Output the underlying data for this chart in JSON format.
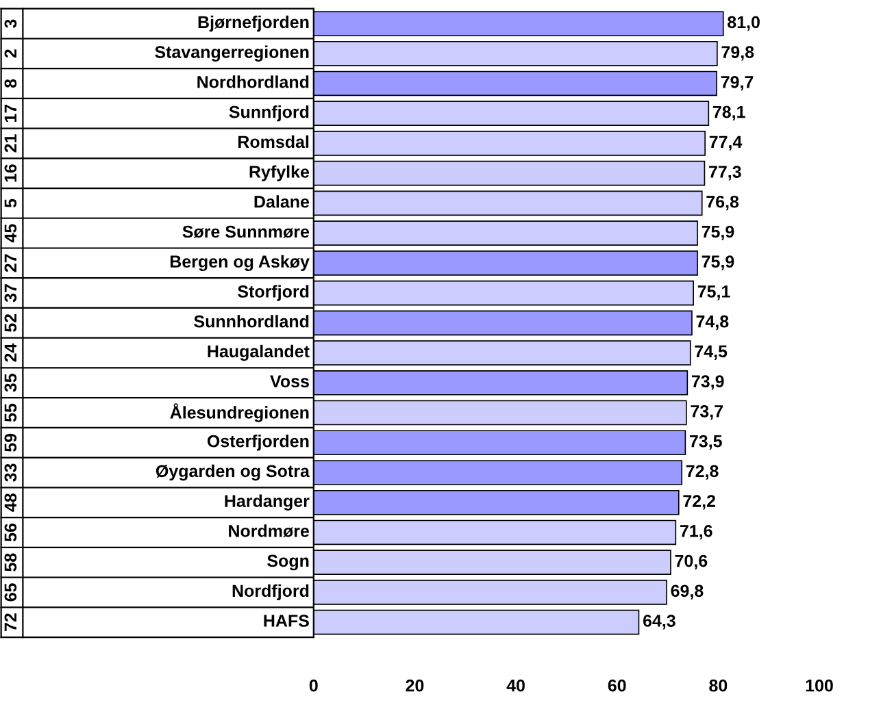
{
  "chart_data": {
    "type": "bar",
    "orientation": "horizontal",
    "categories": [
      "Bjørnefjorden",
      "Stavangerregionen",
      "Nordhordland",
      "Sunnfjord",
      "Romsdal",
      "Ryfylke",
      "Dalane",
      "Søre Sunnmøre",
      "Bergen og Askøy",
      "Storfjord",
      "Sunnhordland",
      "Haugalandet",
      "Voss",
      "Ålesundregionen",
      "Osterfjorden",
      "Øygarden og Sotra",
      "Hardanger",
      "Nordmøre",
      "Sogn",
      "Nordfjord",
      "HAFS"
    ],
    "y2_categories": [
      "3",
      "2",
      "8",
      "17",
      "21",
      "16",
      "5",
      "45",
      "27",
      "37",
      "52",
      "24",
      "35",
      "55",
      "59",
      "33",
      "48",
      "56",
      "58",
      "65",
      "72"
    ],
    "values": [
      81.0,
      79.8,
      79.7,
      78.1,
      77.4,
      77.3,
      76.8,
      75.9,
      75.9,
      75.1,
      74.8,
      74.5,
      73.9,
      73.7,
      73.5,
      72.8,
      72.2,
      71.6,
      70.6,
      69.8,
      64.3
    ],
    "colors": [
      "#9999ff",
      "#ccccff",
      "#9999ff",
      "#ccccff",
      "#ccccff",
      "#ccccff",
      "#ccccff",
      "#ccccff",
      "#9999ff",
      "#ccccff",
      "#9999ff",
      "#ccccff",
      "#9999ff",
      "#ccccff",
      "#9999ff",
      "#9999ff",
      "#9999ff",
      "#ccccff",
      "#ccccff",
      "#ccccff",
      "#ccccff"
    ],
    "value_labels": [
      "81,0",
      "79,8",
      "79,7",
      "78,1",
      "77,4",
      "77,3",
      "76,8",
      "75,9",
      "75,9",
      "75,1",
      "74,8",
      "74,5",
      "73,9",
      "73,7",
      "73,5",
      "72,8",
      "72,2",
      "71,6",
      "70,6",
      "69,8",
      "64,3"
    ],
    "xlim": [
      0,
      100
    ],
    "xticks": [
      0,
      20,
      40,
      60,
      80,
      100
    ],
    "grid": false
  }
}
